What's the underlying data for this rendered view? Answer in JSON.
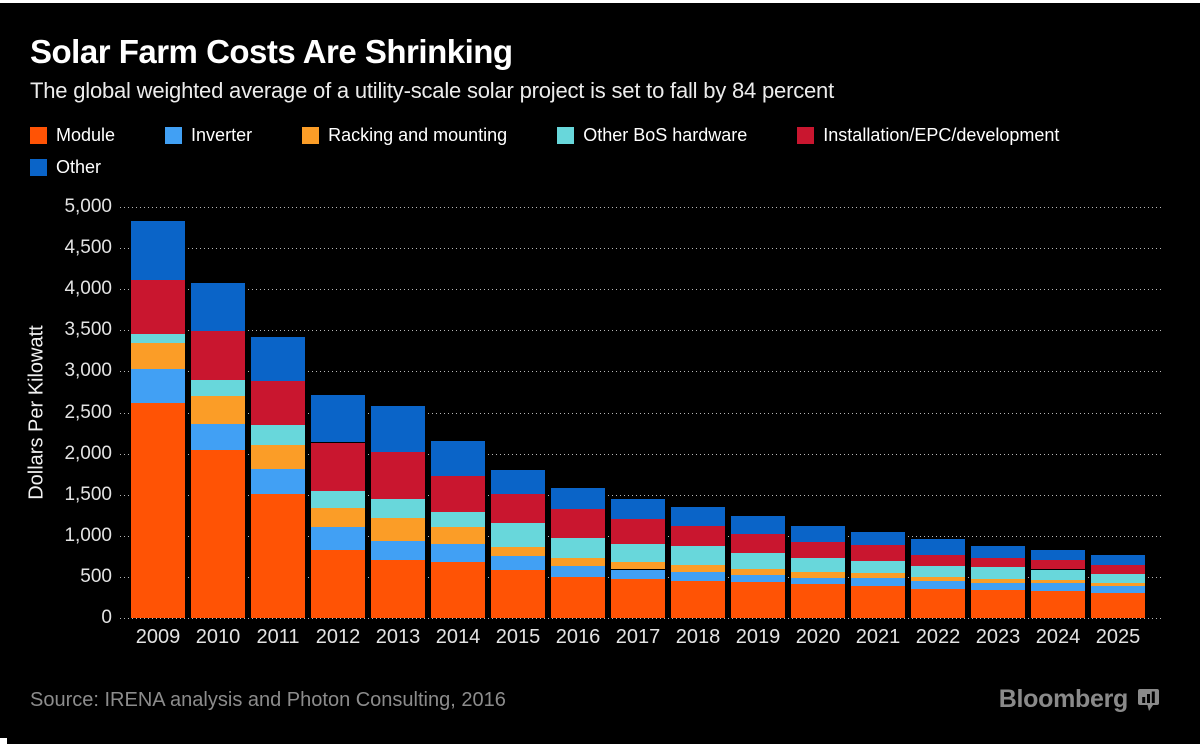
{
  "header": {
    "title": "Solar Farm Costs Are Shrinking",
    "subtitle": "The global weighted average of a utility-scale solar project is set to fall by 84 percent"
  },
  "footer": {
    "source": "Source: IRENA analysis and Photon Consulting, 2016",
    "brand": "Bloomberg"
  },
  "colors": {
    "background": "#000000",
    "top_rule": "#ffffff",
    "gridline": "#b5b5b5",
    "axis_text": "#e3e3e3",
    "muted_text": "#8c8c8c"
  },
  "chart_data": {
    "type": "bar",
    "stacked": true,
    "title": "Solar Farm Costs Are Shrinking",
    "xlabel": "",
    "ylabel": "Dollars Per Kilowatt",
    "ylim": [
      0,
      5000
    ],
    "ytick_interval": 500,
    "ytick_labels": [
      "0",
      "500",
      "1,000",
      "1,500",
      "2,000",
      "2,500",
      "3,000",
      "3,500",
      "4,000",
      "4,500",
      "5,000"
    ],
    "grid": "horizontal-dotted",
    "legend_position": "top",
    "legend_rows": [
      [
        0,
        1,
        2,
        3,
        4
      ],
      [
        5
      ]
    ],
    "categories": [
      "2009",
      "2010",
      "2011",
      "2012",
      "2013",
      "2014",
      "2015",
      "2016",
      "2017",
      "2018",
      "2019",
      "2020",
      "2021",
      "2022",
      "2023",
      "2024",
      "2025"
    ],
    "series": [
      {
        "name": "Module",
        "color": "#FF5305",
        "values": [
          2620,
          2045,
          1505,
          830,
          710,
          680,
          580,
          500,
          480,
          445,
          435,
          410,
          395,
          350,
          335,
          330,
          310
        ]
      },
      {
        "name": "Inverter",
        "color": "#41A0F4",
        "values": [
          410,
          320,
          310,
          275,
          225,
          215,
          170,
          130,
          110,
          115,
          90,
          80,
          90,
          95,
          95,
          90,
          75
        ]
      },
      {
        "name": "Racking and mounting",
        "color": "#FB9D27",
        "values": [
          310,
          330,
          290,
          230,
          280,
          215,
          115,
          100,
          95,
          90,
          75,
          65,
          60,
          50,
          45,
          40,
          35
        ]
      },
      {
        "name": "Other BoS hardware",
        "color": "#68D7DB",
        "values": [
          115,
          205,
          245,
          215,
          235,
          185,
          285,
          240,
          210,
          225,
          195,
          170,
          150,
          140,
          140,
          130,
          115
        ]
      },
      {
        "name": "Installation/EPC/development",
        "color": "#C9162F",
        "values": [
          655,
          590,
          535,
          585,
          575,
          430,
          360,
          350,
          315,
          245,
          225,
          205,
          190,
          130,
          115,
          115,
          105
        ]
      },
      {
        "name": "Other",
        "color": "#0A64C8",
        "values": [
          715,
          590,
          535,
          580,
          555,
          430,
          285,
          265,
          240,
          225,
          215,
          195,
          160,
          195,
          140,
          125,
          130
        ]
      }
    ],
    "totals": [
      4825,
      4080,
      3420,
      2715,
      2580,
      2155,
      1795,
      1585,
      1450,
      1345,
      1235,
      1125,
      1045,
      960,
      870,
      830,
      770
    ]
  }
}
